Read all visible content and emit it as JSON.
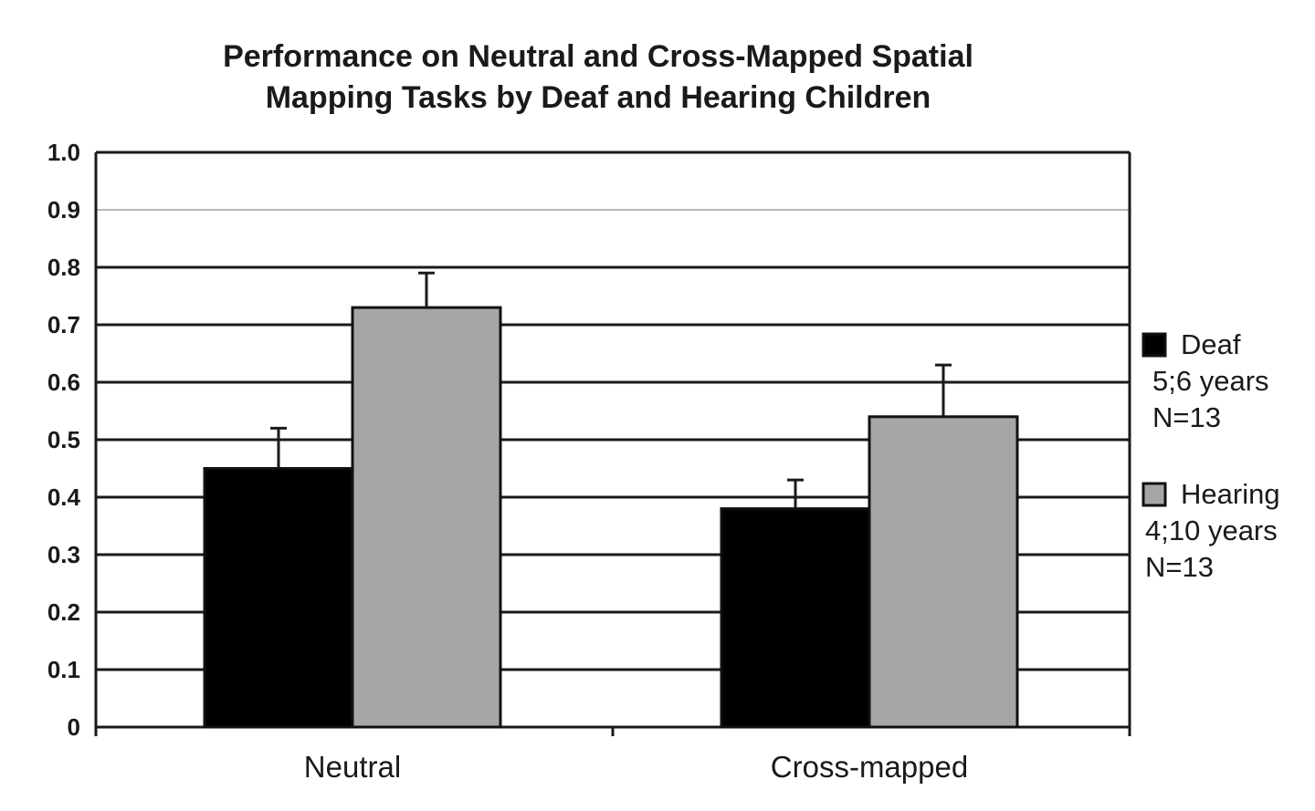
{
  "chart_data": {
    "type": "bar",
    "title": "Performance on Neutral and Cross-Mapped Spatial Mapping Tasks by Deaf and Hearing Children",
    "title_lines": [
      "Performance on Neutral and Cross-Mapped Spatial",
      "Mapping Tasks by Deaf and Hearing Children"
    ],
    "xlabel": "",
    "ylabel": "",
    "ylim": [
      0,
      1.0
    ],
    "yticks": [
      "0",
      "0.1",
      "0.2",
      "0.3",
      "0.4",
      "0.5",
      "0.6",
      "0.7",
      "0.8",
      "0.9",
      "1.0"
    ],
    "grid": true,
    "legend_position": "right",
    "categories": [
      "Neutral",
      "Cross-mapped"
    ],
    "series": [
      {
        "name": "Deaf",
        "legend_lines": [
          "Deaf",
          "5;6 years",
          "N=13"
        ],
        "color": "#000000",
        "values": [
          0.45,
          0.38
        ],
        "errors": [
          0.07,
          0.05
        ]
      },
      {
        "name": "Hearing",
        "legend_lines": [
          "Hearing",
          "4;10 years",
          "N=13"
        ],
        "color": "#a6a6a6",
        "values": [
          0.73,
          0.54
        ],
        "errors": [
          0.06,
          0.09
        ]
      }
    ]
  }
}
